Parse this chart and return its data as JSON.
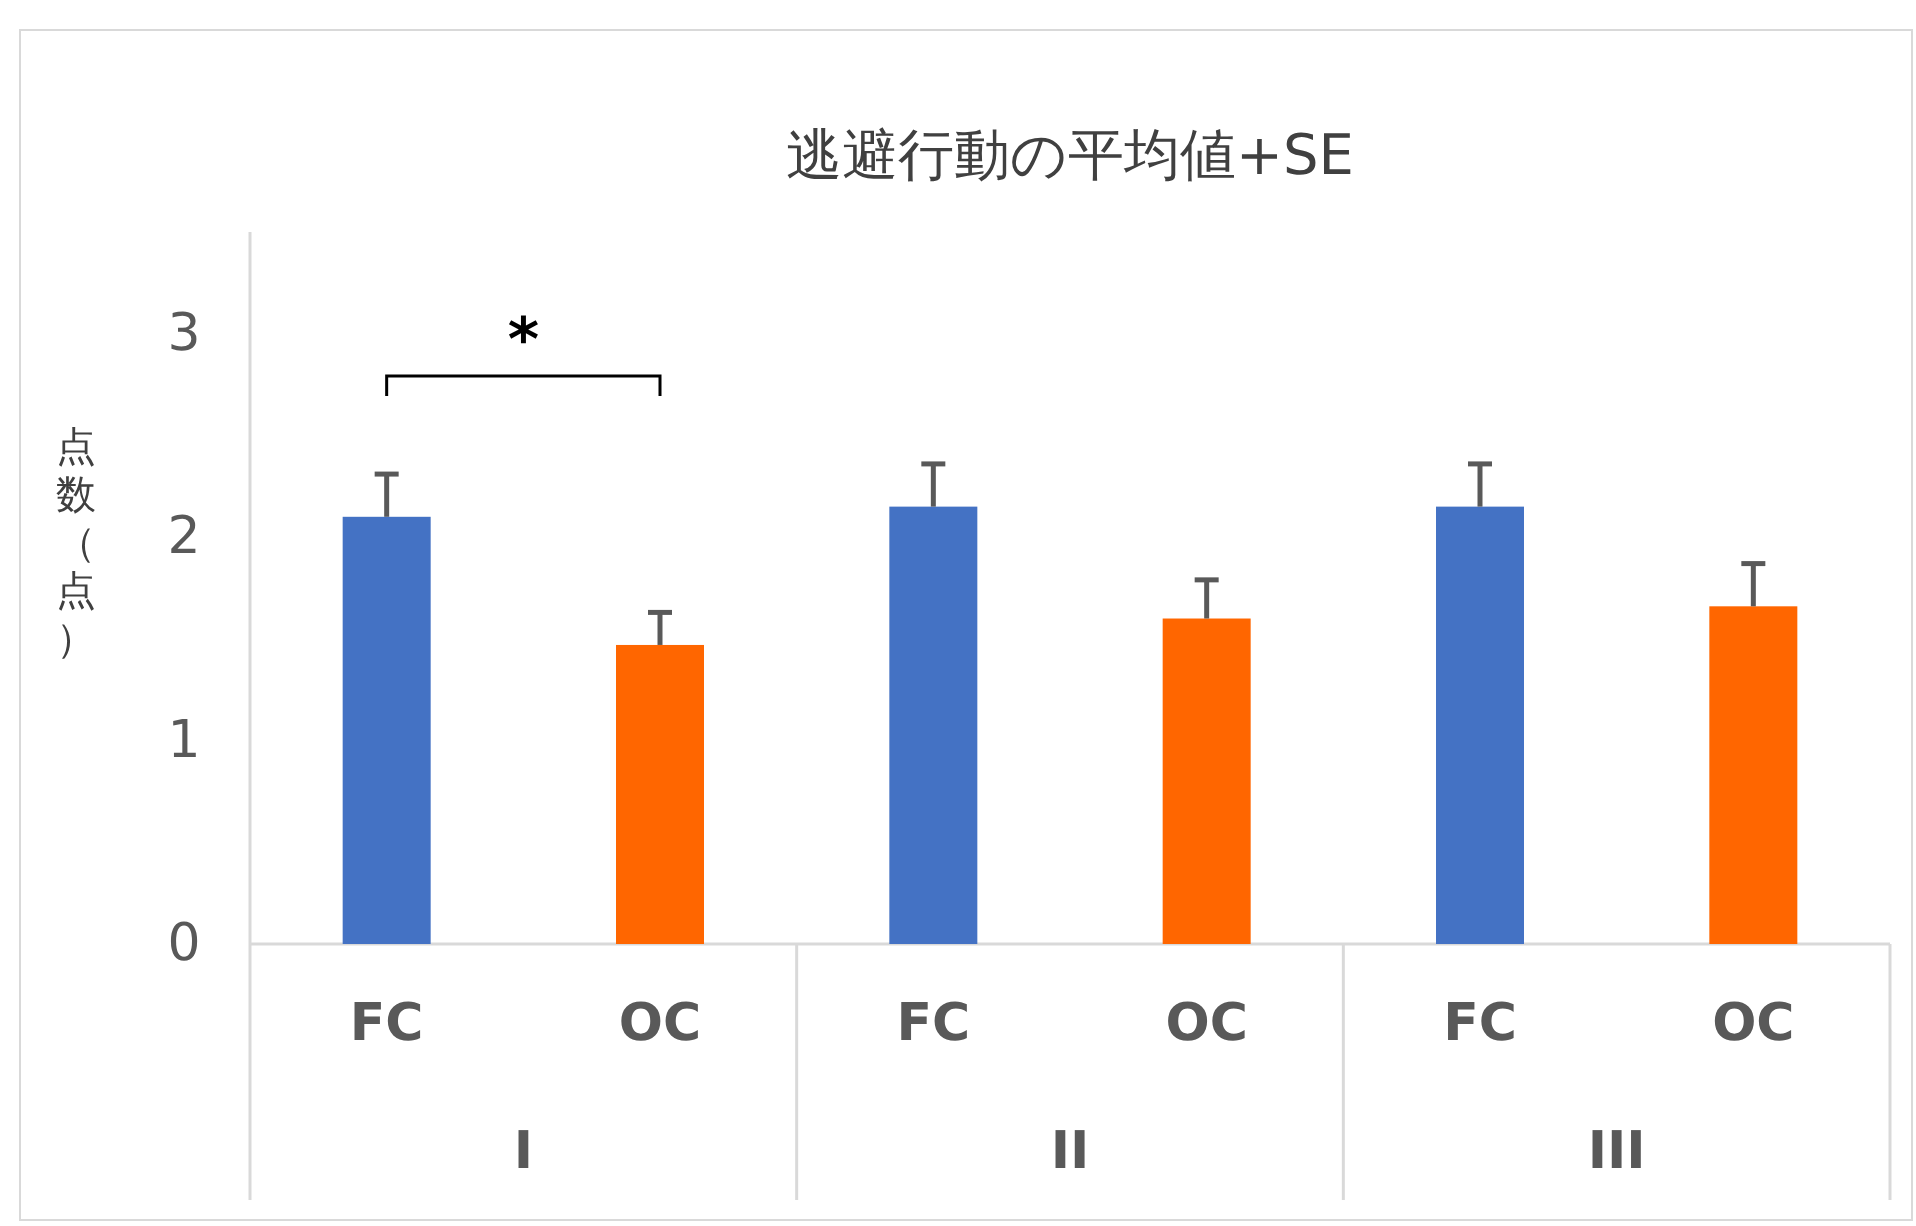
{
  "chart_data": {
    "type": "bar",
    "title": "逃避行動の平均値+SE",
    "ylabel": "点数（点）",
    "categories": [
      "I",
      "II",
      "III"
    ],
    "series": [
      {
        "name": "FC",
        "color": "#4472c4",
        "values": [
          2.1,
          2.15,
          2.15
        ],
        "errors": [
          [
            2.1,
            2.31
          ],
          [
            2.15,
            2.36
          ],
          [
            2.15,
            2.36
          ]
        ]
      },
      {
        "name": "OC",
        "color": "#ff6600",
        "values": [
          1.47,
          1.6,
          1.66
        ],
        "errors": [
          [
            1.47,
            1.63
          ],
          [
            1.6,
            1.79
          ],
          [
            1.66,
            1.87
          ]
        ]
      }
    ],
    "ylim": [
      0,
      3.5
    ],
    "yticks": [
      0,
      1,
      2,
      3
    ],
    "grid": false,
    "legend": false,
    "annotations": [
      "*"
    ]
  }
}
